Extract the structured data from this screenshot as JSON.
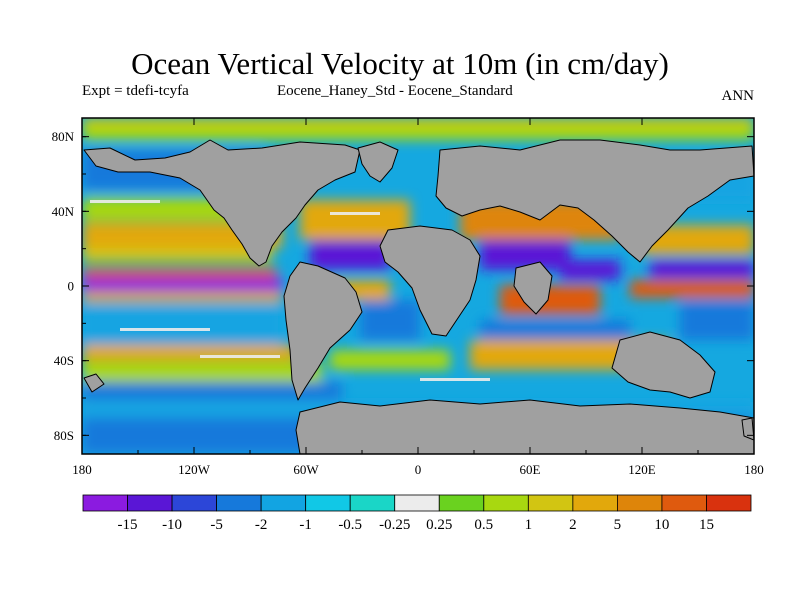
{
  "header": {
    "title": "Ocean Vertical Velocity at 10m (in cm/day)",
    "experiment": "Expt = tdefi-tcyfa",
    "difference": "Eocene_Haney_Std - Eocene_Standard",
    "season": "ANN"
  },
  "map": {
    "projection": "cylindrical equidistant",
    "lon_range": [
      -180,
      180
    ],
    "lat_range": [
      -90,
      90
    ],
    "land_color": "#a0a0a0",
    "lat_ticks": [
      {
        "lat": 80,
        "label": "80N"
      },
      {
        "lat": 40,
        "label": "40N"
      },
      {
        "lat": 0,
        "label": "0"
      },
      {
        "lat": -40,
        "label": "40S"
      },
      {
        "lat": -80,
        "label": "80S"
      }
    ],
    "lon_ticks": [
      {
        "lon": -180,
        "label": "180"
      },
      {
        "lon": -120,
        "label": "120W"
      },
      {
        "lon": -60,
        "label": "60W"
      },
      {
        "lon": 0,
        "label": "0"
      },
      {
        "lon": 60,
        "label": "60E"
      },
      {
        "lon": 120,
        "label": "120E"
      },
      {
        "lon": 180,
        "label": "180"
      }
    ]
  },
  "colorbar": {
    "colors": [
      "#8b1be0",
      "#5a16d6",
      "#2c46d8",
      "#1679db",
      "#12a4e2",
      "#11c8e6",
      "#1ad6c7",
      "#ececec",
      "#6ad21f",
      "#a8d810",
      "#d2c512",
      "#e2a80c",
      "#de850a",
      "#df5a0e",
      "#d9320e"
    ],
    "labels": [
      "-15",
      "-10",
      "-5",
      "-2",
      "-1",
      "-0.5",
      "-0.25",
      "0.25",
      "0.5",
      "1",
      "2",
      "5",
      "10",
      "15"
    ]
  }
}
